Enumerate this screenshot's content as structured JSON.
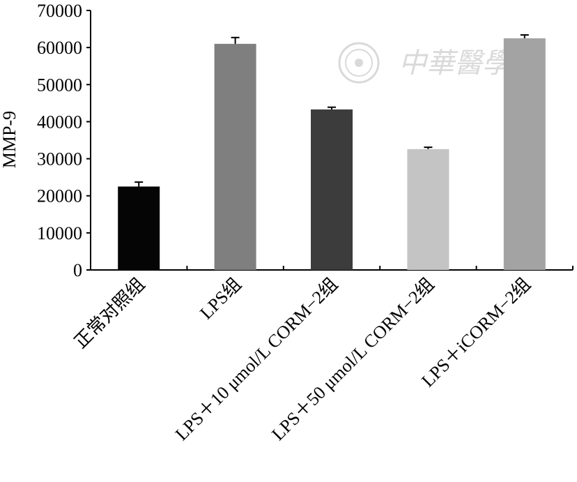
{
  "watermark": {
    "text": "中華醫學會",
    "seal_icon": "society-seal-icon"
  },
  "chart_data": {
    "type": "bar",
    "ylabel": "MMP-9",
    "xlabel": "",
    "ylim": [
      0,
      70000
    ],
    "yticks": [
      0,
      10000,
      20000,
      30000,
      40000,
      50000,
      60000,
      70000
    ],
    "ytick_labels": [
      "0",
      "10000",
      "20000",
      "30000",
      "40000",
      "50000",
      "60000",
      "70000"
    ],
    "grid": false,
    "legend": "none",
    "categories": [
      "正常对照组",
      "LPS组",
      "LPS＋10 μmol/L CORM−2组",
      "LPS＋50 μmol/L CORM−2组",
      "LPS＋iCORM−2组"
    ],
    "values": [
      22500,
      61000,
      43300,
      32600,
      62500
    ],
    "errors": [
      1200,
      1700,
      600,
      500,
      900
    ],
    "colors": [
      "#050505",
      "#7f7f7f",
      "#3c3c3c",
      "#c4c4c4",
      "#a3a3a3"
    ]
  }
}
